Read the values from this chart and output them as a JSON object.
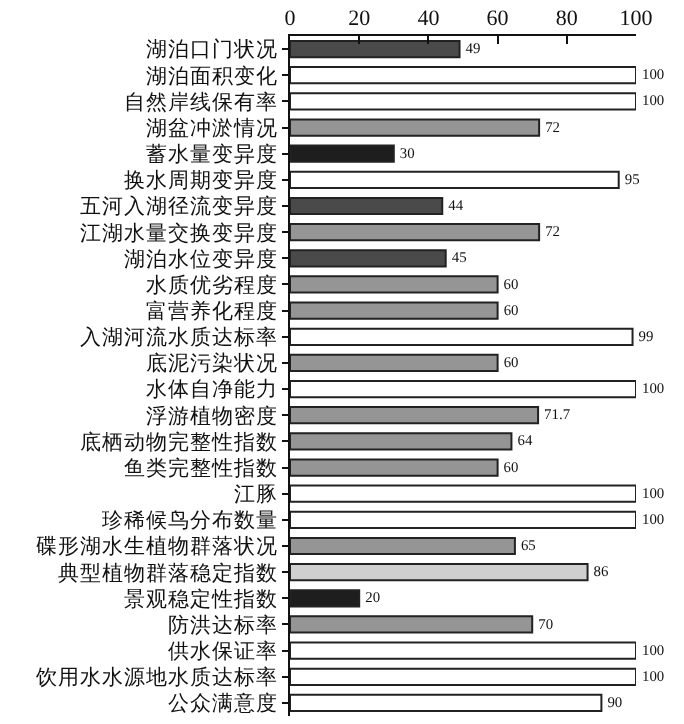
{
  "chart_data": {
    "type": "bar",
    "orientation": "horizontal",
    "categories": [
      "湖泊口门状况",
      "湖泊面积变化",
      "自然岸线保有率",
      "湖盆冲淤情况",
      "蓄水量变异度",
      "换水周期变异度",
      "五河入湖径流变异度",
      "江湖水量交换变异度",
      "湖泊水位变异度",
      "水质优劣程度",
      "富营养化程度",
      "入湖河流水质达标率",
      "底泥污染状况",
      "水体自净能力",
      "浮游植物密度",
      "底栖动物完整性指数",
      "鱼类完整性指数",
      "江豚",
      "珍稀候鸟分布数量",
      "碟形湖水生植物群落状况",
      "典型植物群落稳定指数",
      "景观稳定性指数",
      "防洪达标率",
      "供水保证率",
      "饮用水水源地水质达标率",
      "公众满意度"
    ],
    "values": [
      49,
      100,
      100,
      72,
      30,
      95,
      44,
      72,
      45,
      60,
      60,
      99,
      60,
      100,
      71.7,
      64,
      60,
      100,
      100,
      65,
      86,
      20,
      70,
      100,
      100,
      90
    ],
    "colors": [
      "#4a4a4a",
      "#ffffff",
      "#ffffff",
      "#959595",
      "#1e1e1e",
      "#ffffff",
      "#4a4a4a",
      "#959595",
      "#4a4a4a",
      "#959595",
      "#959595",
      "#ffffff",
      "#959595",
      "#ffffff",
      "#959595",
      "#959595",
      "#959595",
      "#ffffff",
      "#ffffff",
      "#959595",
      "#cfcfcf",
      "#1e1e1e",
      "#959595",
      "#ffffff",
      "#ffffff",
      "#ffffff"
    ],
    "xlim": [
      0,
      100
    ],
    "xticks": [
      0,
      20,
      40,
      60,
      80,
      100
    ],
    "data_labels": true
  }
}
